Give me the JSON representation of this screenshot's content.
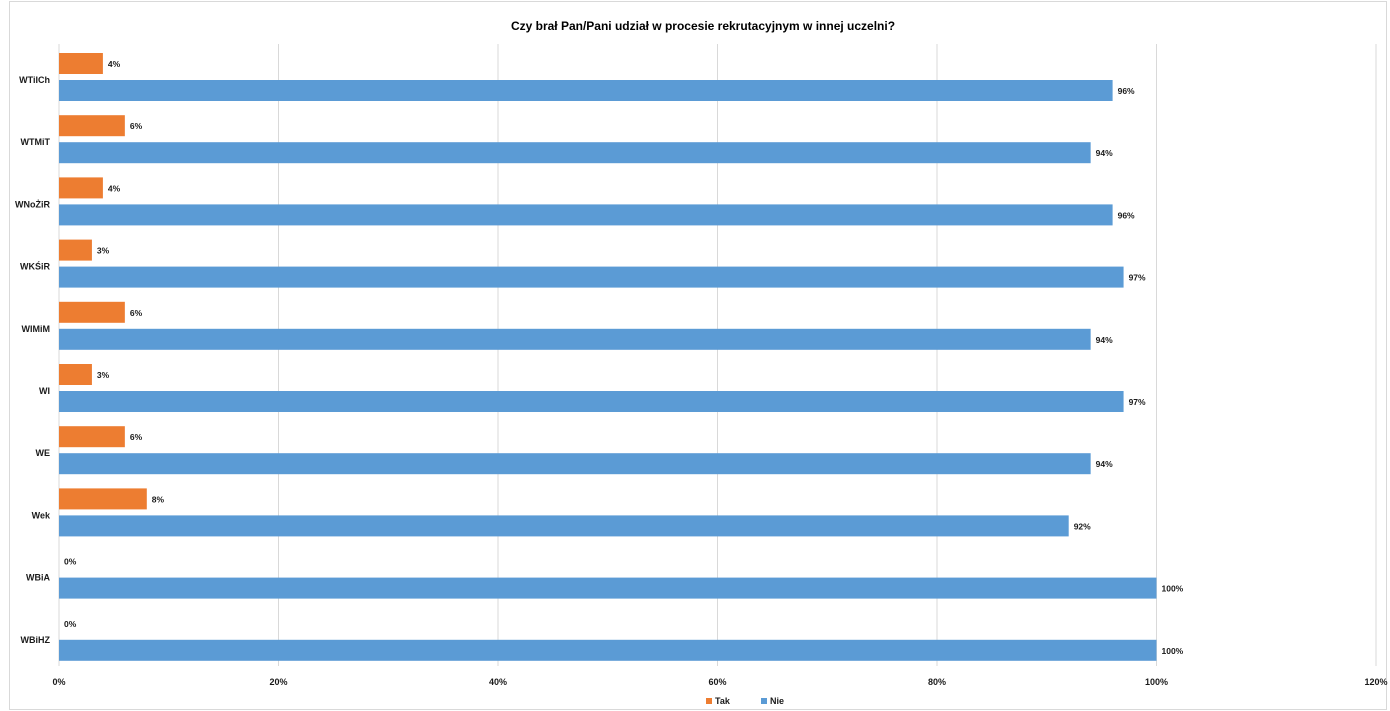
{
  "chart_data": {
    "type": "bar",
    "orientation": "horizontal",
    "title": "Czy brał Pan/Pani  udział w procesie rekrutacyjnym w innej uczelni?",
    "categories": [
      "WTiICh",
      "WTMiT",
      "WNoŻiR",
      "WKŚiR",
      "WIMiM",
      "WI",
      "WE",
      "Wek",
      "WBiA",
      "WBiHZ"
    ],
    "series": [
      {
        "name": "Tak",
        "color": "#ed7d31",
        "values": [
          4,
          6,
          4,
          3,
          6,
          3,
          6,
          8,
          0,
          0
        ]
      },
      {
        "name": "Nie",
        "color": "#5b9bd5",
        "values": [
          96,
          94,
          96,
          97,
          94,
          97,
          94,
          92,
          100,
          100
        ]
      }
    ],
    "xlim": [
      0,
      120
    ],
    "xticks": [
      0,
      20,
      40,
      60,
      80,
      100,
      120
    ],
    "tick_suffix": "%",
    "grid": true,
    "grid_color": "#d9d9d9",
    "legend_position": "bottom"
  }
}
